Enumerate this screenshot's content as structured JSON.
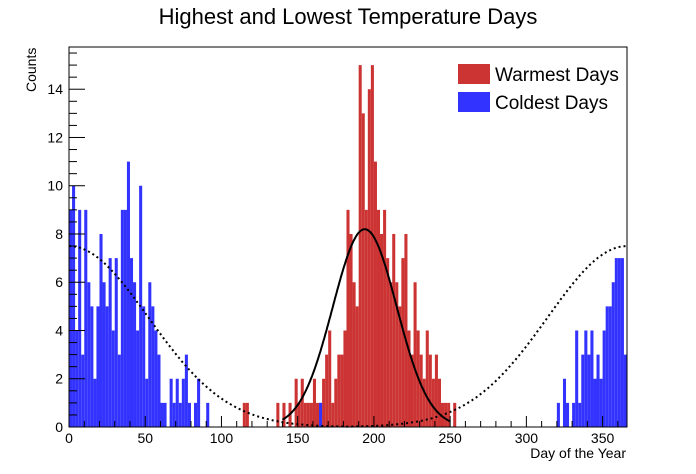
{
  "chart_data": {
    "type": "bar",
    "title": "Highest and Lowest Temperature Days",
    "xlabel": "Day of the Year",
    "ylabel": "Counts",
    "xlim": [
      0,
      366
    ],
    "ylim": [
      0,
      15.75
    ],
    "bin_width": 2,
    "x_ticks": [
      0,
      50,
      100,
      150,
      200,
      250,
      300,
      350
    ],
    "y_ticks": [
      0,
      2,
      4,
      6,
      8,
      10,
      12,
      14
    ],
    "legend_position": "top-right",
    "colors": {
      "warm": "#cc3333",
      "cold": "#3333ff",
      "fit": "#000000"
    },
    "series": [
      {
        "name": "Warmest Days",
        "color": "#cc3333",
        "bins": [
          [
            114,
            1
          ],
          [
            116,
            1
          ],
          [
            136,
            1
          ],
          [
            140,
            1
          ],
          [
            144,
            1
          ],
          [
            148,
            2
          ],
          [
            150,
            1
          ],
          [
            152,
            2
          ],
          [
            154,
            1
          ],
          [
            156,
            1
          ],
          [
            158,
            1
          ],
          [
            160,
            2
          ],
          [
            162,
            1
          ],
          [
            164,
            1
          ],
          [
            166,
            2
          ],
          [
            168,
            3
          ],
          [
            170,
            4
          ],
          [
            172,
            1
          ],
          [
            174,
            2
          ],
          [
            176,
            3
          ],
          [
            178,
            3
          ],
          [
            180,
            4
          ],
          [
            182,
            9
          ],
          [
            184,
            8
          ],
          [
            186,
            6
          ],
          [
            188,
            5
          ],
          [
            190,
            15
          ],
          [
            192,
            13
          ],
          [
            194,
            9
          ],
          [
            196,
            14
          ],
          [
            198,
            15
          ],
          [
            200,
            11
          ],
          [
            202,
            9
          ],
          [
            204,
            8
          ],
          [
            206,
            9
          ],
          [
            208,
            7
          ],
          [
            210,
            6
          ],
          [
            212,
            8
          ],
          [
            214,
            6
          ],
          [
            216,
            5
          ],
          [
            218,
            7
          ],
          [
            220,
            8
          ],
          [
            222,
            4
          ],
          [
            224,
            3
          ],
          [
            226,
            6
          ],
          [
            228,
            4
          ],
          [
            230,
            3
          ],
          [
            232,
            2
          ],
          [
            234,
            4
          ],
          [
            236,
            3
          ],
          [
            238,
            2
          ],
          [
            240,
            3
          ],
          [
            242,
            2
          ],
          [
            244,
            1
          ],
          [
            246,
            1
          ],
          [
            248,
            1
          ],
          [
            252,
            1
          ]
        ]
      },
      {
        "name": "Coldest Days",
        "color": "#3333ff",
        "bins": [
          [
            0,
            9
          ],
          [
            2,
            10
          ],
          [
            4,
            4
          ],
          [
            6,
            9
          ],
          [
            8,
            3
          ],
          [
            10,
            9
          ],
          [
            12,
            6
          ],
          [
            14,
            5
          ],
          [
            16,
            2
          ],
          [
            18,
            5
          ],
          [
            20,
            8
          ],
          [
            22,
            6
          ],
          [
            24,
            5
          ],
          [
            26,
            7
          ],
          [
            28,
            4
          ],
          [
            30,
            7
          ],
          [
            32,
            3
          ],
          [
            34,
            9
          ],
          [
            36,
            9
          ],
          [
            38,
            11
          ],
          [
            40,
            7
          ],
          [
            42,
            6
          ],
          [
            44,
            4
          ],
          [
            46,
            10
          ],
          [
            48,
            5
          ],
          [
            50,
            2
          ],
          [
            52,
            6
          ],
          [
            54,
            5
          ],
          [
            56,
            4
          ],
          [
            58,
            3
          ],
          [
            60,
            1
          ],
          [
            62,
            1
          ],
          [
            66,
            2
          ],
          [
            68,
            1
          ],
          [
            70,
            2
          ],
          [
            72,
            1
          ],
          [
            74,
            2
          ],
          [
            76,
            3
          ],
          [
            78,
            1
          ],
          [
            82,
            1
          ],
          [
            84,
            2
          ],
          [
            90,
            1
          ],
          [
            164,
            1
          ],
          [
            320,
            1
          ],
          [
            324,
            2
          ],
          [
            326,
            1
          ],
          [
            330,
            1
          ],
          [
            332,
            4
          ],
          [
            334,
            1
          ],
          [
            336,
            3
          ],
          [
            338,
            4
          ],
          [
            340,
            3
          ],
          [
            342,
            4
          ],
          [
            344,
            2
          ],
          [
            346,
            3
          ],
          [
            348,
            2
          ],
          [
            350,
            4
          ],
          [
            352,
            5
          ],
          [
            354,
            5
          ],
          [
            356,
            6
          ],
          [
            358,
            7
          ],
          [
            360,
            7
          ],
          [
            362,
            7
          ],
          [
            364,
            3
          ]
        ]
      }
    ],
    "fits": [
      {
        "type": "gaussian",
        "amplitude": 8.2,
        "mean": 194,
        "sigma": 21,
        "range": [
          140,
          250
        ],
        "style": "solid"
      },
      {
        "type": "cyclic-gaussian",
        "amplitude": 7.5,
        "mean": 0,
        "sigma": 52,
        "period": 366,
        "style": "dotted"
      }
    ]
  }
}
